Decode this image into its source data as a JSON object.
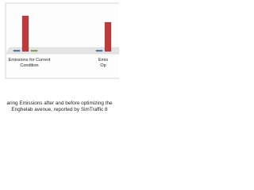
{
  "chart_data": {
    "type": "bar",
    "title": "aring Emissions after and before optimizing the Enghelab avenue, reported by SimTraffic 8",
    "categories": [
      "Emissions for Current Condition",
      "Emis Op"
    ],
    "series": [
      {
        "color": "#4f7fc0",
        "values": [
          4,
          4
        ]
      },
      {
        "color": "#c0393b",
        "values": [
          100,
          82
        ]
      },
      {
        "color": "#8fb553",
        "values": [
          4,
          null
        ]
      }
    ]
  }
}
